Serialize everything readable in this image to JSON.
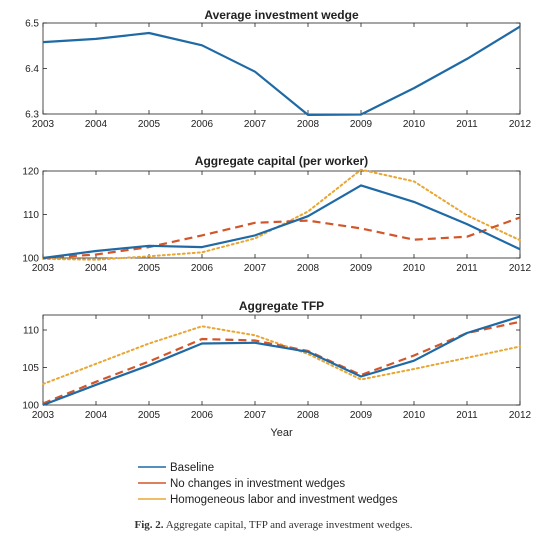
{
  "caption": {
    "label": "Fig. 2.",
    "text": "Aggregate capital, TFP and average investment wedges."
  },
  "colors": {
    "baseline": "#1f6aa5",
    "no_changes": "#d2562a",
    "homogeneous": "#e8a735",
    "axis": "#222222"
  },
  "chart_data": [
    {
      "type": "line",
      "title": "Average investment wedge",
      "xlabel": "",
      "ylabel": "",
      "x": [
        2003,
        2004,
        2005,
        2006,
        2007,
        2008,
        2009,
        2010,
        2011,
        2012
      ],
      "xlim": [
        2003,
        2012
      ],
      "ylim": [
        6.3,
        6.5
      ],
      "yticks": [
        "6.3",
        "6.4",
        "6.5"
      ],
      "grid": false,
      "series": [
        {
          "name": "Baseline",
          "style": "solid",
          "color": "baseline",
          "values": [
            6.458,
            6.465,
            6.478,
            6.451,
            6.393,
            6.298,
            6.299,
            6.357,
            6.421,
            6.492
          ]
        }
      ]
    },
    {
      "type": "line",
      "title": "Aggregate capital (per worker)",
      "xlabel": "",
      "ylabel": "",
      "x": [
        2003,
        2004,
        2005,
        2006,
        2007,
        2008,
        2009,
        2010,
        2011,
        2012
      ],
      "xlim": [
        2003,
        2012
      ],
      "ylim": [
        100,
        120
      ],
      "yticks": [
        "100",
        "110",
        "120"
      ],
      "grid": false,
      "series": [
        {
          "name": "Baseline",
          "style": "solid",
          "color": "baseline",
          "values": [
            100.0,
            101.6,
            102.8,
            102.5,
            105.2,
            109.6,
            116.7,
            112.9,
            107.8,
            102.0
          ]
        },
        {
          "name": "No changes in investment wedges",
          "style": "dashed",
          "color": "no_changes",
          "values": [
            100.0,
            100.8,
            102.5,
            105.2,
            108.1,
            108.6,
            106.8,
            104.2,
            104.9,
            109.3
          ]
        },
        {
          "name": "Homogeneous labor and investment wedges",
          "style": "dotted",
          "color": "homogeneous",
          "values": [
            99.8,
            99.6,
            100.4,
            101.3,
            104.5,
            110.7,
            120.3,
            117.6,
            109.8,
            104.1
          ]
        }
      ]
    },
    {
      "type": "line",
      "title": "Aggregate TFP",
      "xlabel": "Year",
      "ylabel": "",
      "x": [
        2003,
        2004,
        2005,
        2006,
        2007,
        2008,
        2009,
        2010,
        2011,
        2012
      ],
      "xlim": [
        2003,
        2012
      ],
      "ylim": [
        100,
        112
      ],
      "yticks": [
        "100",
        "105",
        "110"
      ],
      "grid": false,
      "series": [
        {
          "name": "Baseline",
          "style": "solid",
          "color": "baseline",
          "values": [
            100.0,
            102.7,
            105.3,
            108.2,
            108.3,
            107.1,
            103.8,
            105.9,
            109.6,
            111.8
          ]
        },
        {
          "name": "No changes in investment wedges",
          "style": "dashed",
          "color": "no_changes",
          "values": [
            100.2,
            103.1,
            105.8,
            108.8,
            108.6,
            107.2,
            104.0,
            106.6,
            109.6,
            111.1
          ]
        },
        {
          "name": "Homogeneous labor and investment wedges",
          "style": "dotted",
          "color": "homogeneous",
          "values": [
            102.8,
            105.5,
            108.2,
            110.5,
            109.3,
            106.8,
            103.4,
            104.8,
            106.3,
            107.8
          ]
        }
      ]
    }
  ],
  "legend": {
    "placement": "bottom-center",
    "entries": [
      {
        "label": "Baseline",
        "color": "baseline",
        "style": "solid"
      },
      {
        "label": "No changes in investment wedges",
        "color": "no_changes",
        "style": "solid"
      },
      {
        "label": "Homogeneous labor and investment wedges",
        "color": "homogeneous",
        "style": "solid"
      }
    ]
  }
}
